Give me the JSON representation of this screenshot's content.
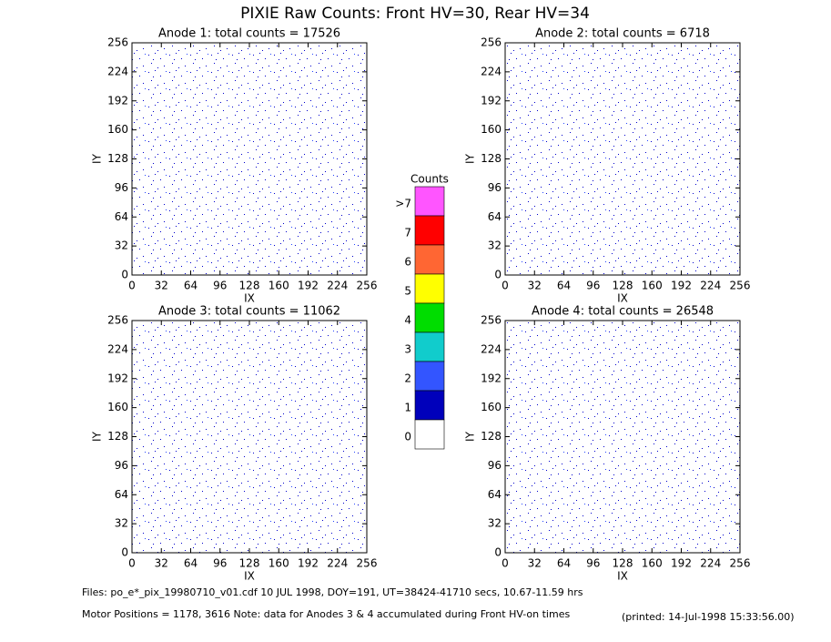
{
  "chart_data": [
    {
      "type": "heatmap",
      "title": "Anode 1: total counts = 17526",
      "xlabel": "IX",
      "ylabel": "IY",
      "xlim": [
        0,
        256
      ],
      "ylim": [
        0,
        256
      ],
      "xticks": [
        0,
        32,
        64,
        96,
        128,
        160,
        192,
        224,
        256
      ],
      "yticks": [
        0,
        32,
        64,
        96,
        128,
        160,
        192,
        224,
        256
      ]
    },
    {
      "type": "heatmap",
      "title": "Anode 2: total counts = 6718",
      "xlabel": "IX",
      "ylabel": "IY",
      "xlim": [
        0,
        256
      ],
      "ylim": [
        0,
        256
      ],
      "xticks": [
        0,
        32,
        64,
        96,
        128,
        160,
        192,
        224,
        256
      ],
      "yticks": [
        0,
        32,
        64,
        96,
        128,
        160,
        192,
        224,
        256
      ]
    },
    {
      "type": "heatmap",
      "title": "Anode 3: total counts = 11062",
      "xlabel": "IX",
      "ylabel": "IY",
      "xlim": [
        0,
        256
      ],
      "ylim": [
        0,
        256
      ],
      "xticks": [
        0,
        32,
        64,
        96,
        128,
        160,
        192,
        224,
        256
      ],
      "yticks": [
        0,
        32,
        64,
        96,
        128,
        160,
        192,
        224,
        256
      ]
    },
    {
      "type": "heatmap",
      "title": "Anode 4: total counts = 26548",
      "xlabel": "IX",
      "ylabel": "IY",
      "xlim": [
        0,
        256
      ],
      "ylim": [
        0,
        256
      ],
      "xticks": [
        0,
        32,
        64,
        96,
        128,
        160,
        192,
        224,
        256
      ],
      "yticks": [
        0,
        32,
        64,
        96,
        128,
        160,
        192,
        224,
        256
      ]
    }
  ],
  "title": "PIXIE Raw Counts:  Front HV=30, Rear HV=34",
  "colorbar": {
    "title": "Counts",
    "labels": [
      ">7",
      "7",
      "6",
      "5",
      "4",
      "3",
      "2",
      "1",
      "0"
    ],
    "colors": [
      "#ff55ff",
      "#ff0000",
      "#ff6633",
      "#ffff00",
      "#00dd00",
      "#11cccc",
      "#3355ff",
      "#0000bb",
      "#ffffff"
    ]
  },
  "footer": {
    "files": "Files: po_e*_pix_19980710_v01.cdf     10 JUL 1998, DOY=191, UT=38424-41710 secs, 10.67-11.59 hrs",
    "motor": "Motor Positions = 1178, 3616   Note: data for Anodes 3 & 4 accumulated during Front HV-on times",
    "printed": "(printed: 14-Jul-1998 15:33:56.00)"
  }
}
